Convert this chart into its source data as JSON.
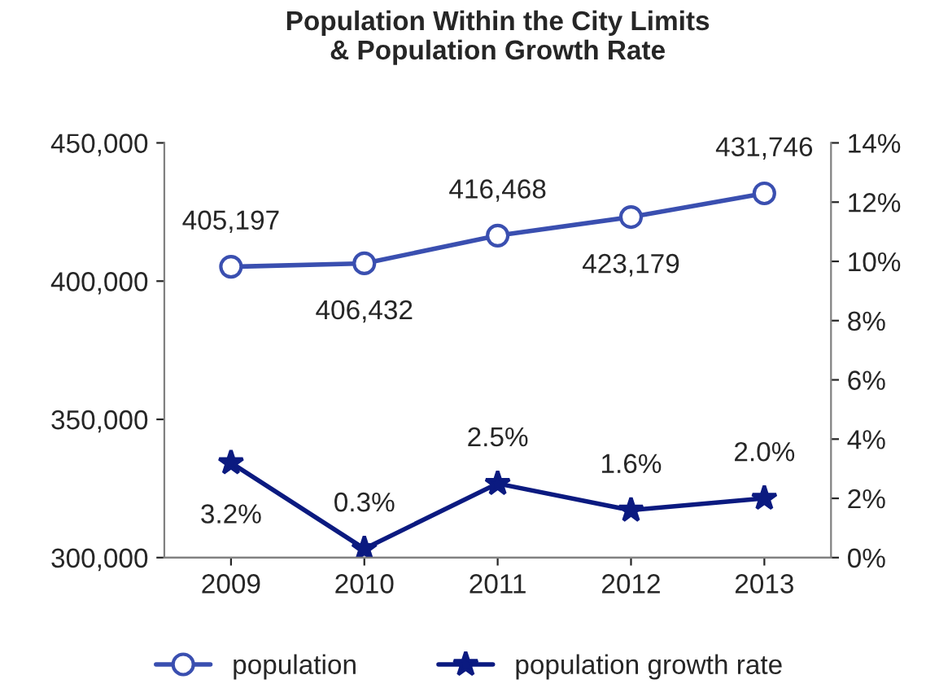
{
  "chart_data": {
    "type": "line",
    "title": "Population Within the City Limits\n& Population Growth Rate",
    "categories": [
      "2009",
      "2010",
      "2011",
      "2012",
      "2013"
    ],
    "series": [
      {
        "name": "population",
        "color": "#3a4fb0",
        "marker": "circle",
        "values": [
          405197,
          406432,
          416468,
          423179,
          431746
        ],
        "value_labels": [
          "405,197",
          "406,432",
          "416,468",
          "423,179",
          "431,746"
        ]
      },
      {
        "name": "population growth rate",
        "color": "#0b1a80",
        "marker": "star",
        "axis": "y2",
        "values": [
          3.2,
          0.3,
          2.5,
          1.6,
          2.0
        ],
        "value_labels": [
          "3.2%",
          "0.3%",
          "2.5%",
          "1.6%",
          "2.0%"
        ]
      }
    ],
    "ylim": [
      300000,
      450000
    ],
    "yticks": [
      {
        "value": 300000,
        "label": "300,000"
      },
      {
        "value": 350000,
        "label": "350,000"
      },
      {
        "value": 400000,
        "label": "400,000"
      },
      {
        "value": 450000,
        "label": "450,000"
      }
    ],
    "y2lim": [
      0,
      14
    ],
    "y2ticks": [
      {
        "value": 0,
        "label": "0%"
      },
      {
        "value": 2,
        "label": "2%"
      },
      {
        "value": 4,
        "label": "4%"
      },
      {
        "value": 6,
        "label": "6%"
      },
      {
        "value": 8,
        "label": "8%"
      },
      {
        "value": 10,
        "label": "10%"
      },
      {
        "value": 12,
        "label": "12%"
      },
      {
        "value": 14,
        "label": "14%"
      }
    ],
    "legend": "bottom",
    "grid": false
  }
}
